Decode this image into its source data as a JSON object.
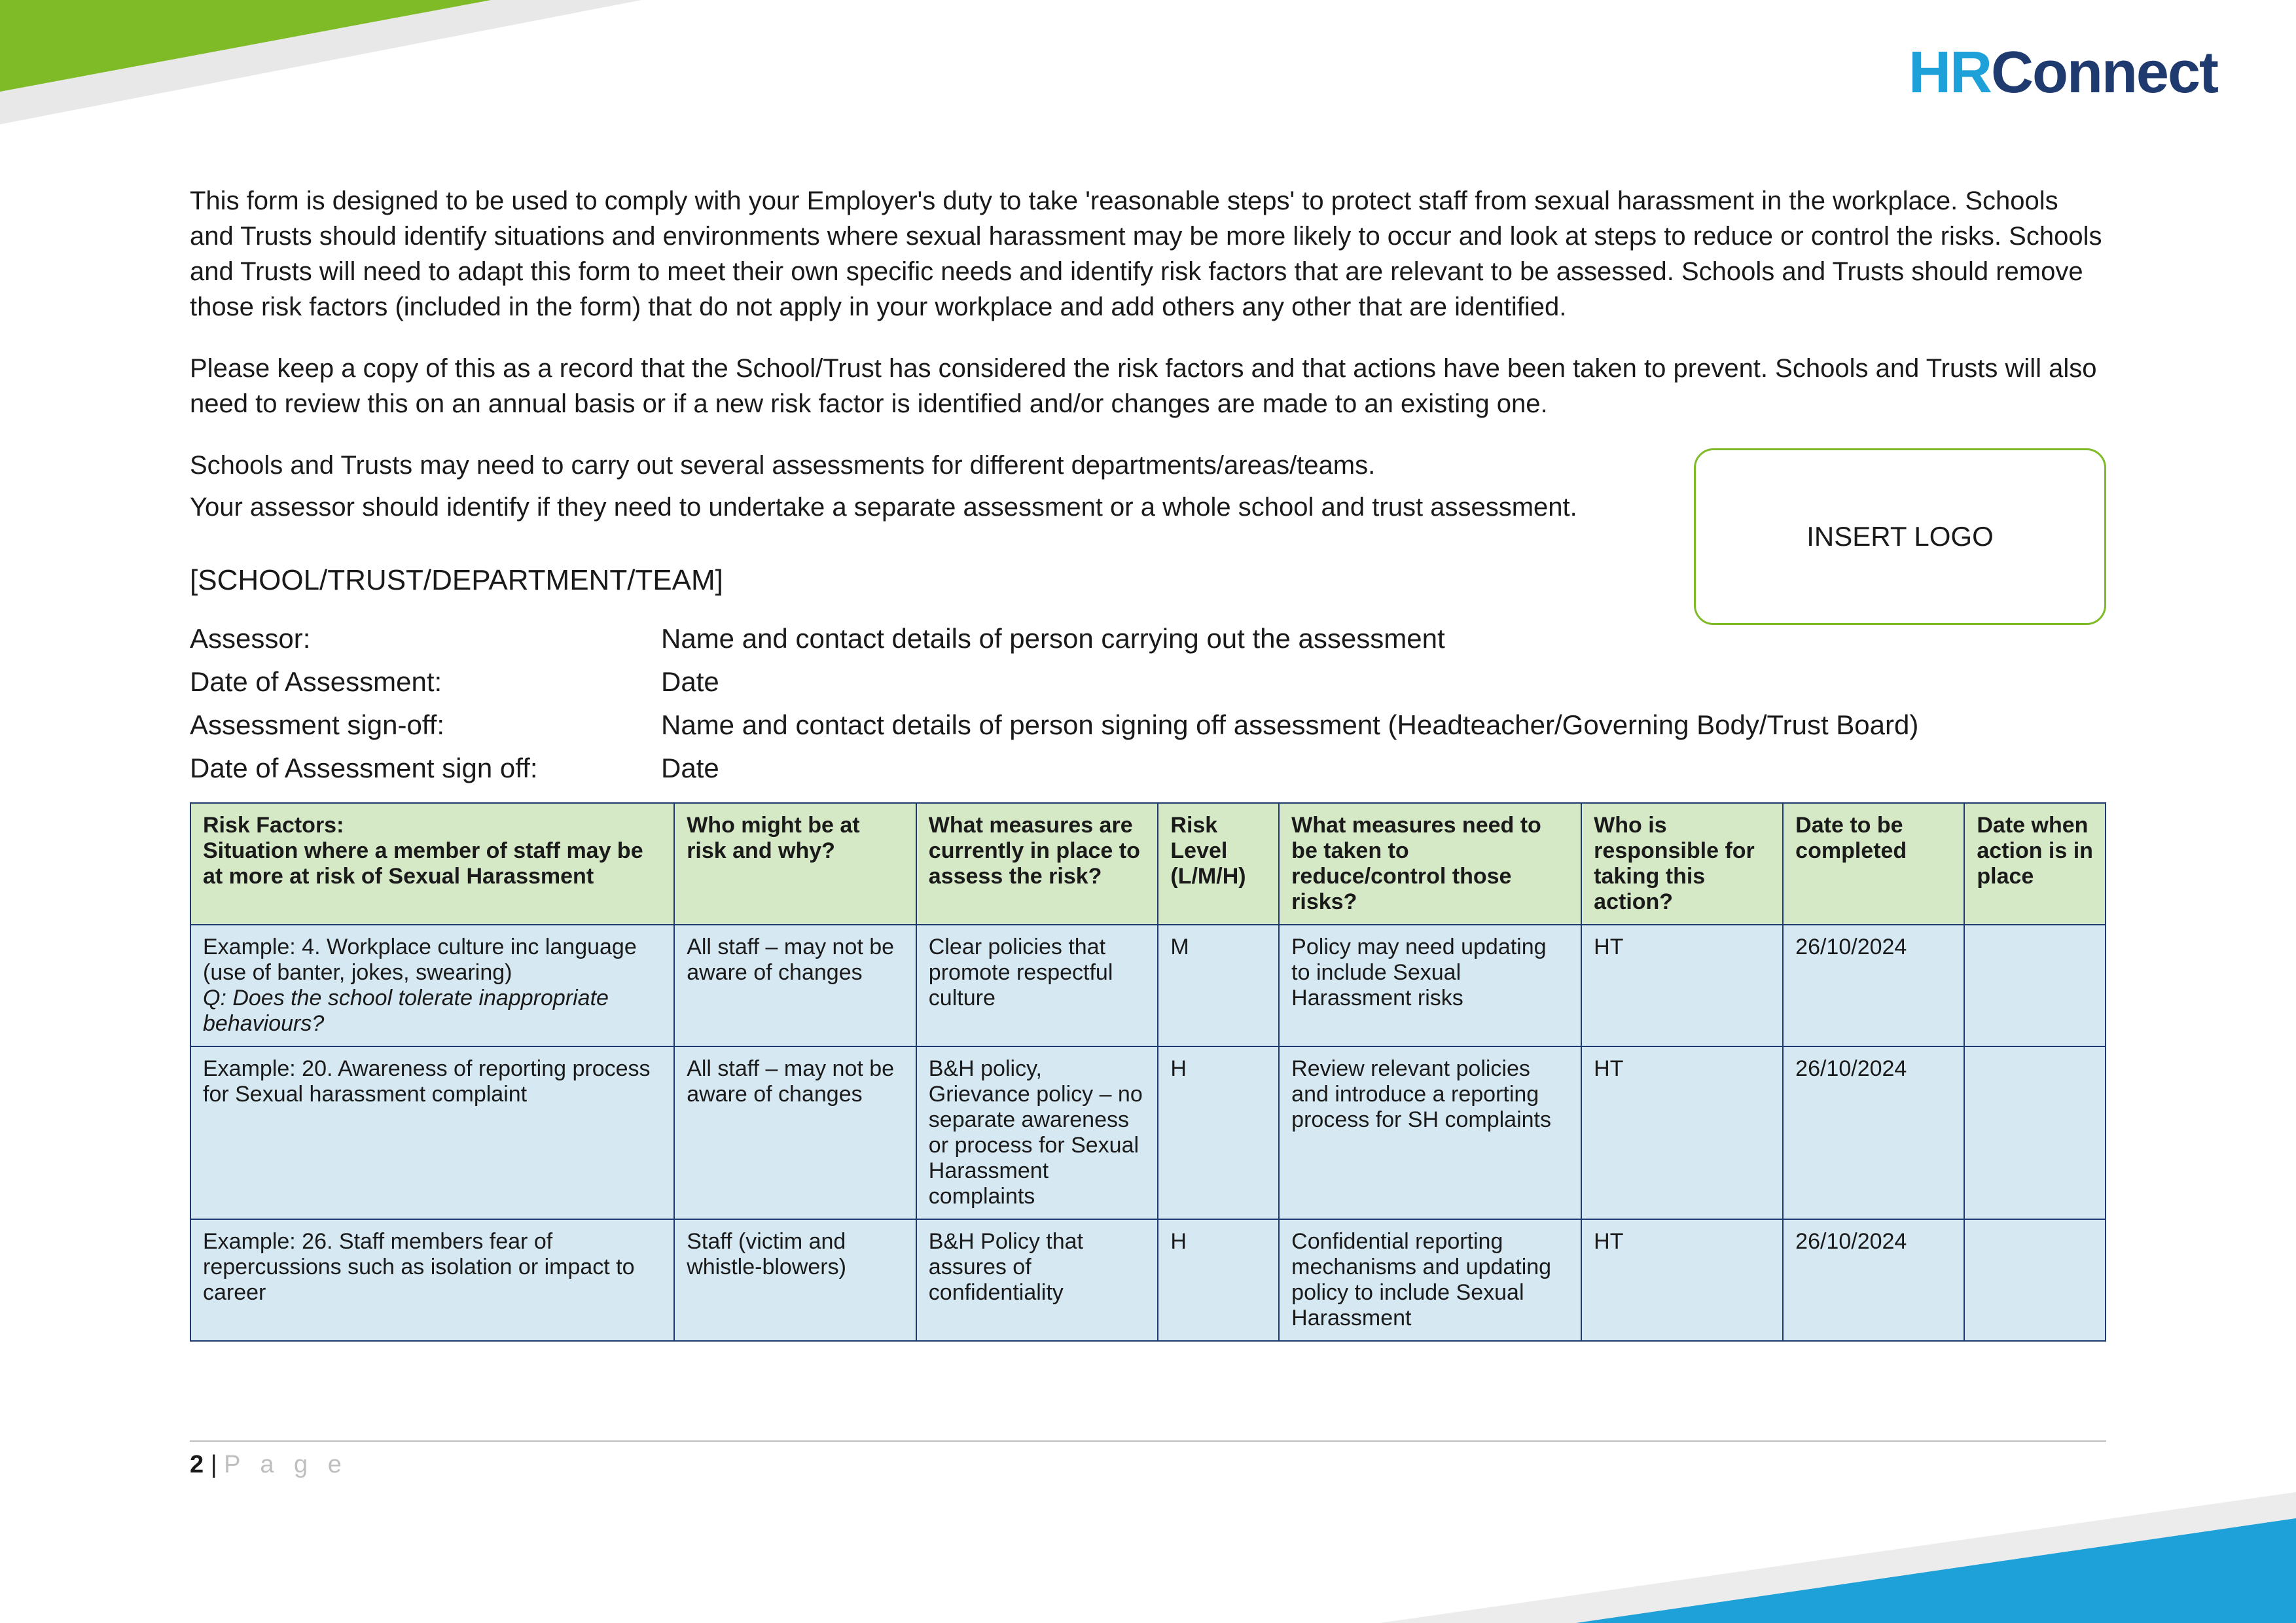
{
  "brand": {
    "part1": "HR",
    "part2": "Connect"
  },
  "paragraphs": {
    "p1": "This form is designed to be used to comply with your Employer's duty to take 'reasonable steps' to protect staff from sexual harassment in the workplace. Schools and Trusts should identify situations and environments where sexual harassment may be more likely to occur and look at steps to reduce or control the risks. Schools and Trusts will need to adapt this form to meet their own specific needs and identify risk factors that are relevant to be assessed. Schools and Trusts should remove those risk factors (included in the form) that do not apply in your workplace and add others any other that are identified.",
    "p2": "Please keep a copy of this as a record that the School/Trust has considered the risk factors and that actions have been taken to prevent. Schools and Trusts will also need to review this on an annual basis or if a new risk factor is identified and/or changes are made to an existing one.",
    "p3a": "Schools and Trusts may need to carry out several assessments for different departments/areas/teams.",
    "p3b": "Your assessor should identify if they need to undertake a separate assessment or a whole school and trust assessment."
  },
  "heading": "[SCHOOL/TRUST/DEPARTMENT/TEAM]",
  "logo_placeholder": "INSERT LOGO",
  "fields": {
    "assessor_label": "Assessor:",
    "assessor_value": "Name and contact details of person carrying out the assessment",
    "date_label": "Date of Assessment:",
    "date_value": "Date",
    "signoff_label": "Assessment sign-off:",
    "signoff_value": "Name and contact details of person signing off assessment (Headteacher/Governing Body/Trust Board)",
    "signoff_date_label": "Date of Assessment sign off:",
    "signoff_date_value": "Date"
  },
  "table": {
    "columns": {
      "c1a": "Risk Factors:",
      "c1b": "Situation where a member of staff may be at more at risk of Sexual Harassment",
      "c2": "Who might be at risk and why?",
      "c3": "What measures are currently in place to assess the risk?",
      "c4": "Risk Level (L/M/H)",
      "c5": "What measures need to be taken to reduce/control those risks?",
      "c6": "Who is responsible for taking this action?",
      "c7": "Date to be completed",
      "c8": "Date when action is in place"
    },
    "rows": [
      {
        "risk_main": "Example: 4. Workplace culture inc language (use of banter, jokes, swearing)",
        "risk_q": "Q: Does the school tolerate inappropriate behaviours?",
        "who": "All staff – may not be aware of changes",
        "current": "Clear policies that promote respectful culture",
        "level": "M",
        "needed": "Policy may need updating to include Sexual Harassment risks",
        "responsible": "HT",
        "date": "26/10/2024",
        "inplace": ""
      },
      {
        "risk_main": "Example: 20. Awareness of reporting process for Sexual harassment complaint",
        "risk_q": "",
        "who": "All staff – may not be aware of changes",
        "current": "B&H policy, Grievance policy – no separate awareness or process for Sexual Harassment complaints",
        "level": "H",
        "needed": "Review relevant policies and introduce a reporting process for SH complaints",
        "responsible": "HT",
        "date": "26/10/2024",
        "inplace": ""
      },
      {
        "risk_main": "Example: 26. Staff members fear of repercussions such as isolation or impact to career",
        "risk_q": "",
        "who": "Staff (victim and whistle-blowers)",
        "current": "B&H Policy that assures of confidentiality",
        "level": "H",
        "needed": "Confidential reporting mechanisms and updating policy to include Sexual Harassment",
        "responsible": "HT",
        "date": "26/10/2024",
        "inplace": ""
      }
    ]
  },
  "footer": {
    "page_num": "2",
    "sep": " | ",
    "word": "P a g e"
  },
  "colors": {
    "green": "#7fba27",
    "blue": "#1ea0d8",
    "navy": "#1f3a6e",
    "header_bg": "#d6e9c6",
    "row_bg": "#d6e9f3"
  }
}
